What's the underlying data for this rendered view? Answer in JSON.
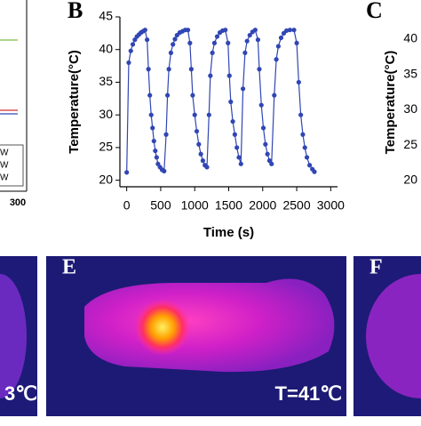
{
  "chart_data": [
    {
      "type": "line",
      "xticks": [
        300
      ],
      "legend_fragments": [
        "W",
        "W",
        "W"
      ]
    },
    {
      "type": "line",
      "panel": "B",
      "xlabel": "Time (s)",
      "ylabel": "Temperature(°C)",
      "xlim": [
        -100,
        3100
      ],
      "ylim": [
        19,
        45
      ],
      "xticks": [
        0,
        500,
        1000,
        1500,
        2000,
        2500,
        3000
      ],
      "yticks": [
        20,
        25,
        30,
        35,
        40,
        45
      ],
      "series": [
        {
          "color": "#3046b4",
          "x": [
            0,
            30,
            60,
            90,
            120,
            150,
            180,
            210,
            240,
            270,
            300,
            320,
            340,
            360,
            380,
            400,
            420,
            440,
            460,
            490,
            520,
            550,
            580,
            600,
            620,
            650,
            680,
            710,
            740,
            780,
            820,
            860,
            900,
            930,
            950,
            970,
            1000,
            1030,
            1060,
            1090,
            1120,
            1150,
            1180,
            1210,
            1230,
            1260,
            1290,
            1330,
            1370,
            1410,
            1450,
            1490,
            1510,
            1530,
            1560,
            1590,
            1620,
            1650,
            1680,
            1710,
            1740,
            1770,
            1810,
            1850,
            1890,
            1930,
            1950,
            1980,
            2010,
            2040,
            2070,
            2100,
            2130,
            2170,
            2200,
            2230,
            2270,
            2310,
            2350,
            2400,
            2460,
            2500,
            2530,
            2560,
            2590,
            2620,
            2650,
            2690,
            2730,
            2760
          ],
          "values": [
            21.2,
            38,
            39.8,
            40.8,
            41.5,
            42,
            42.3,
            42.6,
            42.8,
            43,
            41.5,
            37,
            33,
            30,
            28,
            26,
            24.5,
            23.5,
            22.5,
            22,
            21.6,
            21.4,
            27,
            33,
            37,
            39.5,
            40.8,
            41.6,
            42.2,
            42.6,
            42.8,
            43,
            43,
            41,
            37,
            33,
            30,
            27.5,
            25.5,
            24,
            23,
            22.3,
            22,
            30,
            36,
            39.5,
            41,
            42,
            42.6,
            42.9,
            43,
            41,
            36,
            32,
            29,
            27,
            25,
            23.5,
            22.5,
            34,
            39.5,
            41.3,
            42.2,
            42.7,
            43,
            41.5,
            37,
            31.5,
            28,
            25.5,
            24,
            23,
            22.5,
            33,
            38.5,
            40.5,
            41.8,
            42.5,
            42.9,
            43,
            43,
            41,
            35,
            30,
            27,
            25,
            23.5,
            22.3,
            21.7,
            21.3
          ]
        }
      ]
    },
    {
      "type": "line",
      "panel": "C",
      "ylabel": "Temperature(°C)",
      "ylim": [
        18,
        42
      ],
      "yticks": [
        20,
        25,
        30,
        35,
        40
      ]
    }
  ],
  "images": [
    {
      "annotation": "3℃"
    },
    {
      "label": "E",
      "annotation": "T=41℃"
    },
    {
      "label": "F"
    }
  ]
}
